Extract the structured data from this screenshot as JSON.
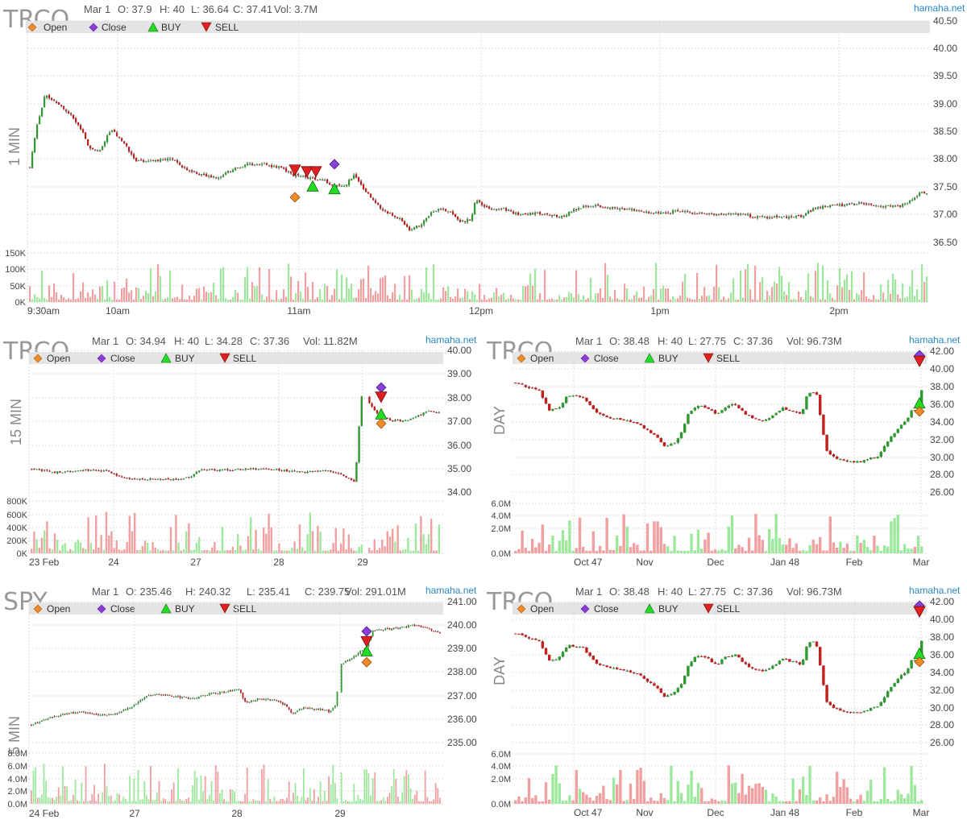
{
  "colors": {
    "up": "#2f9a2f",
    "down": "#c21f1f",
    "wick": "#222222",
    "vol_up": "#9ee89e",
    "vol_down": "#f0a0a0",
    "open_marker": "#f08c28",
    "close_marker": "#8a3fd6",
    "buy_marker": "#22dd22",
    "sell_marker": "#e02020",
    "legend_bar": "#e4e4e4",
    "brand": "#2a86c8"
  },
  "legend": {
    "open": "Open",
    "close": "Close",
    "buy": "BUY",
    "sell": "SELL"
  },
  "brand": "hamaha.net",
  "panels": [
    {
      "id": "p1",
      "symbol": "TRCO",
      "timeframe": "1 MIN",
      "stats": {
        "date": "Mar 1",
        "o": "O: 37.9",
        "h": "H: 40",
        "l": "L: 36.64",
        "c": "C: 37.41",
        "vol": "Vol: 3.7M"
      },
      "price_ticks": [
        "40.50",
        "40.00",
        "39.50",
        "39.00",
        "38.50",
        "38.00",
        "37.50",
        "37.00",
        "36.50"
      ],
      "volume_ticks": [
        "150K",
        "100K",
        "50K",
        "0K"
      ],
      "x_labels": [
        "9:30am",
        "10am",
        "11am",
        "12pm",
        "1pm",
        "2pm"
      ]
    },
    {
      "id": "p2",
      "symbol": "TRCO",
      "timeframe": "15 MIN",
      "stats": {
        "date": "Mar 1",
        "o": "O: 34.94",
        "h": "H: 40",
        "l": "L: 34.28",
        "c": "C: 37.36",
        "vol": "Vol: 11.82M"
      },
      "price_ticks": [
        "40.00",
        "39.00",
        "38.00",
        "37.00",
        "36.00",
        "35.00",
        "34.00"
      ],
      "volume_ticks": [
        "800K",
        "600K",
        "400K",
        "200K",
        "0K"
      ],
      "x_labels": [
        "23 Feb",
        "24",
        "27",
        "28",
        "29"
      ]
    },
    {
      "id": "p3",
      "symbol": "TRCO",
      "timeframe": "DAY",
      "stats": {
        "date": "Mar 1",
        "o": "O: 38.48",
        "h": "H: 40",
        "l": "L: 27.75",
        "c": "C: 37.36",
        "vol": "Vol: 96.73M"
      },
      "price_ticks": [
        "42.00",
        "40.00",
        "38.00",
        "36.00",
        "34.00",
        "32.00",
        "30.00",
        "28.00",
        "26.00"
      ],
      "volume_ticks": [
        "6.0M",
        "4.0M",
        "2.0M",
        "0.0M"
      ],
      "x_labels": [
        "Oct 47",
        "Nov",
        "Dec",
        "Jan 48",
        "Feb",
        "Mar"
      ]
    },
    {
      "id": "p4",
      "symbol": "SPY",
      "timeframe": "5 MIN",
      "stats": {
        "date": "Mar 1",
        "o": "O: 235.46",
        "h": "H: 240.32",
        "l": "L: 235.41",
        "c": "C: 239.75",
        "vol": "Vol: 291.01M"
      },
      "price_ticks": [
        "241.00",
        "240.00",
        "239.00",
        "238.00",
        "237.00",
        "236.00",
        "235.00"
      ],
      "volume_ticks": [
        "8.0M",
        "6.0M",
        "4.0M",
        "2.0M",
        "0.0M"
      ],
      "x_labels": [
        "24 Feb",
        "27",
        "28",
        "29"
      ]
    },
    {
      "id": "p5",
      "symbol": "TRCO",
      "timeframe": "DAY",
      "stats": {
        "date": "Mar 1",
        "o": "O: 38.48",
        "h": "H: 40",
        "l": "L: 27.75",
        "c": "C: 37.36",
        "vol": "Vol: 96.73M"
      },
      "price_ticks": [
        "42.00",
        "40.00",
        "38.00",
        "36.00",
        "34.00",
        "32.00",
        "30.00",
        "28.00",
        "26.00"
      ],
      "volume_ticks": [
        "6.0M",
        "4.0M",
        "2.0M",
        "0.0M"
      ],
      "x_labels": [
        "Oct 47",
        "Nov",
        "Dec",
        "Jan 48",
        "Feb",
        "Mar"
      ]
    }
  ],
  "chart_data": [
    {
      "type": "candlestick",
      "panel": "p1",
      "symbol": "TRCO",
      "interval": "1 min",
      "ylim": [
        36.4,
        40.55
      ],
      "vol_max": 150000,
      "close_path": [
        [
          0,
          37.9
        ],
        [
          3,
          38.7
        ],
        [
          6,
          39.2
        ],
        [
          10,
          39.1
        ],
        [
          15,
          38.9
        ],
        [
          20,
          38.6
        ],
        [
          24,
          38.2
        ],
        [
          28,
          38.2
        ],
        [
          32,
          38.6
        ],
        [
          36,
          38.4
        ],
        [
          42,
          38.0
        ],
        [
          50,
          38.0
        ],
        [
          56,
          38.05
        ],
        [
          62,
          37.85
        ],
        [
          68,
          37.75
        ],
        [
          74,
          37.7
        ],
        [
          80,
          37.85
        ],
        [
          86,
          37.95
        ],
        [
          92,
          37.95
        ],
        [
          98,
          37.9
        ],
        [
          104,
          37.75
        ],
        [
          110,
          37.7
        ],
        [
          116,
          37.65
        ],
        [
          120,
          37.55
        ],
        [
          124,
          37.55
        ],
        [
          128,
          37.75
        ],
        [
          132,
          37.5
        ],
        [
          136,
          37.25
        ],
        [
          140,
          37.1
        ],
        [
          146,
          36.95
        ],
        [
          150,
          36.75
        ],
        [
          154,
          36.85
        ],
        [
          158,
          37.05
        ],
        [
          162,
          37.15
        ],
        [
          166,
          37.1
        ],
        [
          170,
          36.9
        ],
        [
          174,
          36.95
        ],
        [
          176,
          37.3
        ],
        [
          180,
          37.15
        ],
        [
          186,
          37.15
        ],
        [
          192,
          37.05
        ],
        [
          198,
          37.05
        ],
        [
          204,
          37.05
        ],
        [
          210,
          37.0
        ],
        [
          216,
          37.15
        ],
        [
          222,
          37.2
        ],
        [
          228,
          37.15
        ],
        [
          234,
          37.15
        ],
        [
          240,
          37.1
        ],
        [
          248,
          37.05
        ],
        [
          256,
          37.1
        ],
        [
          264,
          37.05
        ],
        [
          272,
          37.05
        ],
        [
          280,
          37.05
        ],
        [
          286,
          37.0
        ],
        [
          292,
          36.98
        ],
        [
          298,
          37.0
        ],
        [
          304,
          37.0
        ],
        [
          310,
          37.15
        ],
        [
          316,
          37.2
        ],
        [
          322,
          37.2
        ],
        [
          328,
          37.25
        ],
        [
          334,
          37.2
        ],
        [
          340,
          37.2
        ],
        [
          345,
          37.2
        ],
        [
          349,
          37.35
        ],
        [
          352,
          37.45
        ],
        [
          354,
          37.41
        ]
      ],
      "trades": [
        {
          "type": "open",
          "time": "10:51am",
          "price": 37.35
        },
        {
          "type": "sell",
          "time": "10:51am",
          "price": 37.85
        },
        {
          "type": "sell",
          "time": "10:55am",
          "price": 37.82
        },
        {
          "type": "sell",
          "time": "10:58am",
          "price": 37.82
        },
        {
          "type": "buy",
          "time": "11:00am",
          "price": 37.55
        },
        {
          "type": "close",
          "time": "11:04am",
          "price": 37.95
        },
        {
          "type": "buy",
          "time": "11:07am",
          "price": 37.5
        }
      ]
    },
    {
      "type": "candlestick",
      "panel": "p2",
      "symbol": "TRCO",
      "interval": "15 min",
      "ylim": [
        33.9,
        40.0
      ],
      "vol_max": 800000,
      "close_path": [
        [
          0,
          34.9
        ],
        [
          12,
          34.75
        ],
        [
          24,
          34.85
        ],
        [
          38,
          34.8
        ],
        [
          46,
          34.5
        ],
        [
          60,
          34.45
        ],
        [
          74,
          34.45
        ],
        [
          80,
          34.55
        ],
        [
          84,
          34.85
        ],
        [
          96,
          34.85
        ],
        [
          110,
          34.9
        ],
        [
          124,
          34.85
        ],
        [
          136,
          34.75
        ],
        [
          148,
          34.85
        ],
        [
          156,
          34.65
        ],
        [
          160,
          34.4
        ],
        [
          162,
          34.35
        ],
        [
          165,
          38.0
        ],
        [
          168,
          37.9
        ],
        [
          172,
          37.4
        ],
        [
          176,
          37.1
        ],
        [
          180,
          37.0
        ],
        [
          186,
          36.95
        ],
        [
          192,
          37.1
        ],
        [
          198,
          37.4
        ],
        [
          204,
          37.35
        ]
      ],
      "trades": [
        {
          "type": "close",
          "date": "29 Feb",
          "price": 38.4
        },
        {
          "type": "sell",
          "date": "29 Feb",
          "price": 38.0
        },
        {
          "type": "buy",
          "date": "29 Feb",
          "price": 37.25
        },
        {
          "type": "open",
          "date": "29 Feb",
          "price": 36.85
        }
      ]
    },
    {
      "type": "candlestick",
      "panel": "p3",
      "symbol": "TRCO",
      "interval": "day",
      "ylim": [
        25.0,
        42.2
      ],
      "vol_max": 6000000,
      "close_path": [
        [
          0,
          38.3
        ],
        [
          5,
          37.8
        ],
        [
          10,
          37.3
        ],
        [
          14,
          34.9
        ],
        [
          18,
          35.2
        ],
        [
          22,
          36.8
        ],
        [
          28,
          36.6
        ],
        [
          34,
          34.6
        ],
        [
          40,
          34.0
        ],
        [
          46,
          33.8
        ],
        [
          52,
          33.2
        ],
        [
          56,
          32.3
        ],
        [
          60,
          31.5
        ],
        [
          62,
          30.5
        ],
        [
          66,
          30.8
        ],
        [
          70,
          32.4
        ],
        [
          72,
          34.3
        ],
        [
          76,
          35.6
        ],
        [
          80,
          35.3
        ],
        [
          84,
          34.4
        ],
        [
          88,
          35.4
        ],
        [
          92,
          35.7
        ],
        [
          96,
          34.5
        ],
        [
          100,
          33.9
        ],
        [
          104,
          33.6
        ],
        [
          108,
          34.3
        ],
        [
          112,
          35.2
        ],
        [
          116,
          34.8
        ],
        [
          120,
          34.5
        ],
        [
          122,
          36.8
        ],
        [
          124,
          37.4
        ],
        [
          126,
          36.9
        ],
        [
          130,
          30.0
        ],
        [
          134,
          29.0
        ],
        [
          140,
          28.6
        ],
        [
          144,
          28.6
        ],
        [
          148,
          29.0
        ],
        [
          152,
          29.3
        ],
        [
          156,
          31.2
        ],
        [
          160,
          32.7
        ],
        [
          164,
          33.8
        ],
        [
          166,
          35.1
        ],
        [
          168,
          34.9
        ],
        [
          170,
          37.36
        ]
      ],
      "trades": [
        {
          "type": "close",
          "date": "Mar 1",
          "price": 41.7
        },
        {
          "type": "sell",
          "date": "Mar 1",
          "price": 41.0
        },
        {
          "type": "buy",
          "date": "Mar 1",
          "price": 35.8
        },
        {
          "type": "open",
          "date": "Mar 1",
          "price": 34.8
        }
      ]
    },
    {
      "type": "candlestick",
      "panel": "p4",
      "symbol": "SPY",
      "interval": "5 min",
      "ylim": [
        234.8,
        241.2
      ],
      "vol_max": 8000000,
      "close_path": [
        [
          0,
          235.6
        ],
        [
          10,
          235.9
        ],
        [
          20,
          236.1
        ],
        [
          30,
          236.2
        ],
        [
          40,
          236.05
        ],
        [
          50,
          236.1
        ],
        [
          60,
          236.4
        ],
        [
          68,
          236.9
        ],
        [
          76,
          237.0
        ],
        [
          86,
          236.9
        ],
        [
          96,
          236.8
        ],
        [
          106,
          237.0
        ],
        [
          116,
          237.1
        ],
        [
          124,
          237.2
        ],
        [
          128,
          236.6
        ],
        [
          136,
          236.8
        ],
        [
          146,
          236.7
        ],
        [
          152,
          236.5
        ],
        [
          156,
          236.1
        ],
        [
          162,
          236.4
        ],
        [
          170,
          236.3
        ],
        [
          176,
          236.3
        ],
        [
          178,
          236.2
        ],
        [
          182,
          236.5
        ],
        [
          184,
          238.3
        ],
        [
          190,
          238.6
        ],
        [
          196,
          238.9
        ],
        [
          200,
          239.1
        ],
        [
          204,
          239.9
        ],
        [
          212,
          239.95
        ],
        [
          220,
          240.0
        ],
        [
          228,
          240.15
        ],
        [
          236,
          240.0
        ],
        [
          244,
          239.75
        ]
      ],
      "trades": [
        {
          "type": "close",
          "date": "29",
          "price": 239.85
        },
        {
          "type": "sell",
          "date": "29",
          "price": 239.4
        },
        {
          "type": "buy",
          "date": "29",
          "price": 238.95
        },
        {
          "type": "open",
          "date": "29",
          "price": 238.45
        }
      ]
    },
    {
      "type": "candlestick",
      "panel": "p5",
      "symbol": "TRCO",
      "interval": "day",
      "ylim": [
        25.0,
        42.2
      ],
      "vol_max": 6000000,
      "close_path": [
        [
          0,
          38.3
        ],
        [
          5,
          37.8
        ],
        [
          10,
          37.3
        ],
        [
          14,
          34.9
        ],
        [
          18,
          35.2
        ],
        [
          22,
          36.8
        ],
        [
          28,
          36.6
        ],
        [
          34,
          34.6
        ],
        [
          40,
          34.0
        ],
        [
          46,
          33.8
        ],
        [
          52,
          33.2
        ],
        [
          56,
          32.3
        ],
        [
          60,
          31.5
        ],
        [
          62,
          30.5
        ],
        [
          66,
          30.8
        ],
        [
          70,
          32.4
        ],
        [
          72,
          34.3
        ],
        [
          76,
          35.6
        ],
        [
          80,
          35.3
        ],
        [
          84,
          34.4
        ],
        [
          88,
          35.4
        ],
        [
          92,
          35.7
        ],
        [
          96,
          34.5
        ],
        [
          100,
          33.9
        ],
        [
          104,
          33.6
        ],
        [
          108,
          34.3
        ],
        [
          112,
          35.2
        ],
        [
          116,
          34.8
        ],
        [
          120,
          34.5
        ],
        [
          122,
          36.8
        ],
        [
          124,
          37.4
        ],
        [
          126,
          36.9
        ],
        [
          130,
          30.0
        ],
        [
          134,
          29.0
        ],
        [
          140,
          28.6
        ],
        [
          144,
          28.6
        ],
        [
          148,
          29.0
        ],
        [
          152,
          29.3
        ],
        [
          156,
          31.2
        ],
        [
          160,
          32.7
        ],
        [
          164,
          33.8
        ],
        [
          166,
          35.1
        ],
        [
          168,
          34.9
        ],
        [
          170,
          37.36
        ]
      ],
      "trades": [
        {
          "type": "close",
          "date": "Mar 1",
          "price": 41.7
        },
        {
          "type": "sell",
          "date": "Mar 1",
          "price": 41.0
        },
        {
          "type": "buy",
          "date": "Mar 1",
          "price": 35.8
        },
        {
          "type": "open",
          "date": "Mar 1",
          "price": 34.8
        }
      ]
    }
  ]
}
